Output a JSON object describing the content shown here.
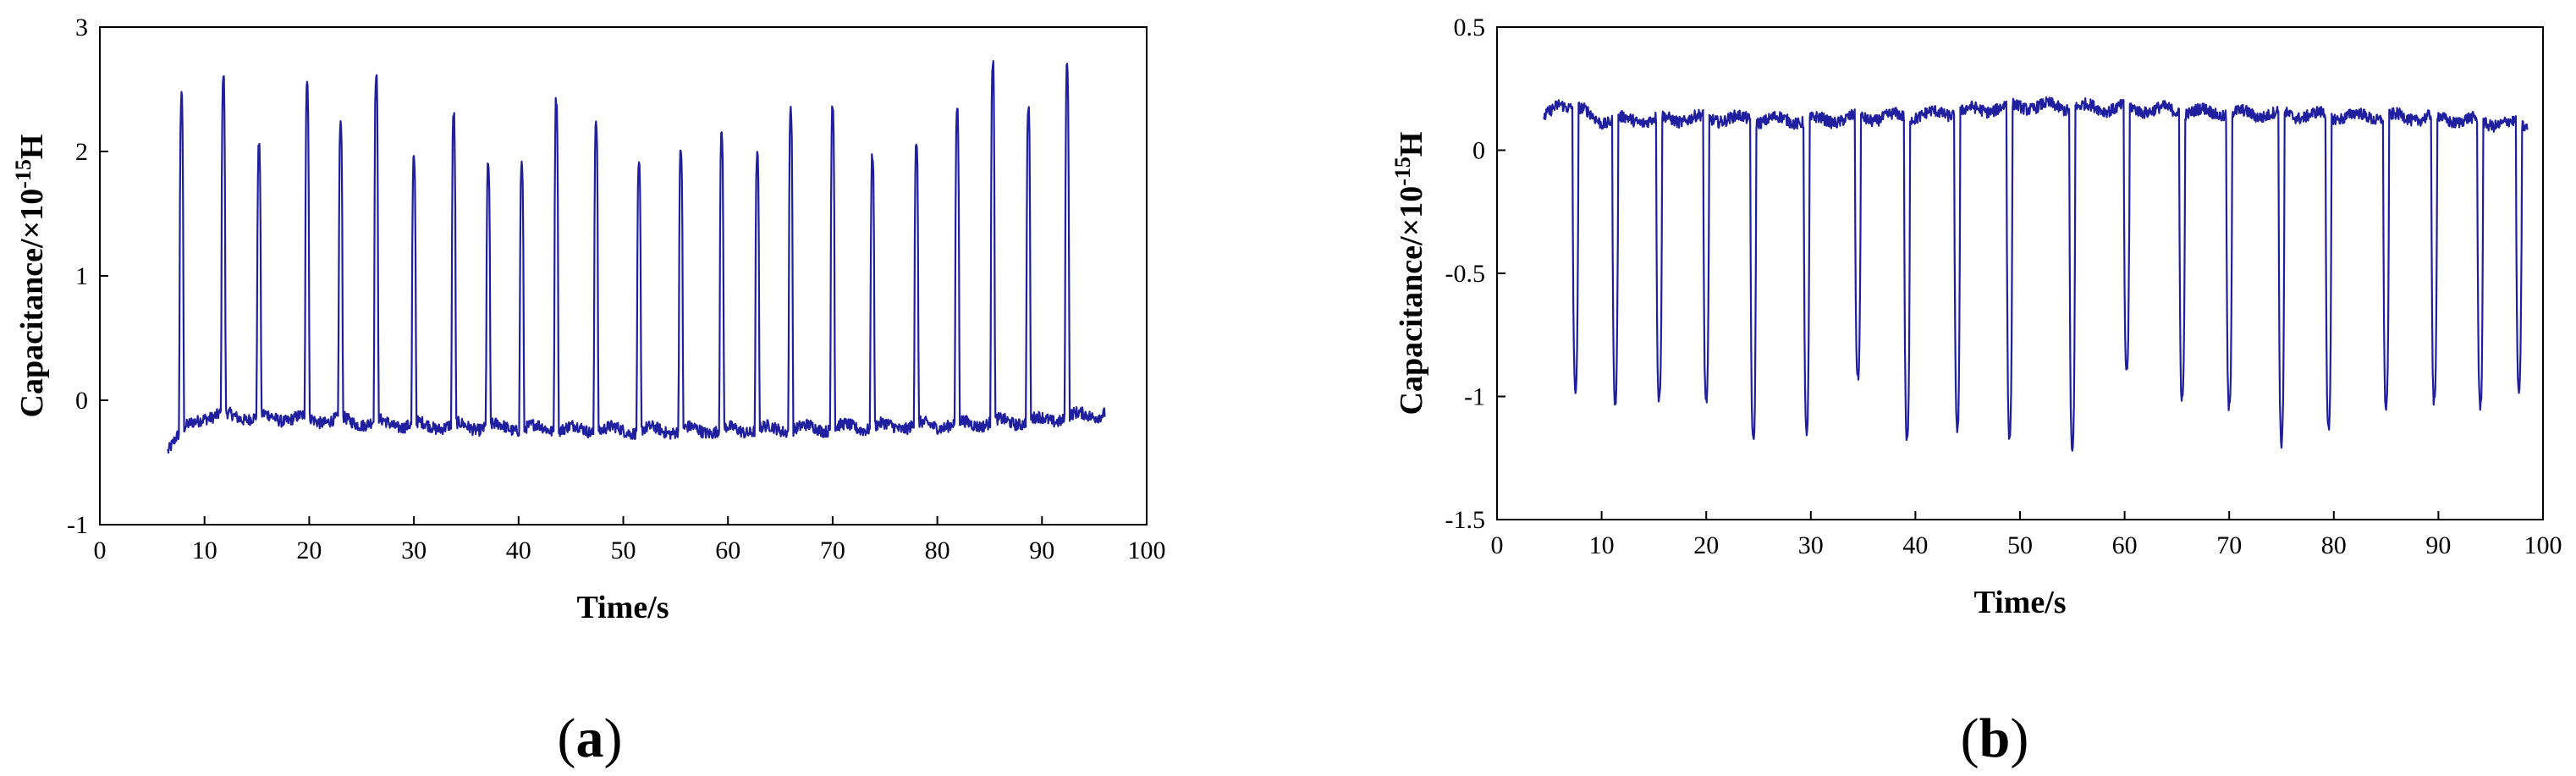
{
  "chart_data": [
    {
      "type": "line",
      "panel_label": "a",
      "xlabel": "Time/s",
      "ylabel_main": "Capacitance/×10",
      "ylabel_exp": "-15",
      "ylabel_unit": "H",
      "xlim": [
        0,
        100
      ],
      "ylim": [
        -1,
        3
      ],
      "xticks": [
        0,
        10,
        20,
        30,
        40,
        50,
        60,
        70,
        80,
        90,
        100
      ],
      "yticks": [
        -1,
        0,
        1,
        2,
        3
      ],
      "grid": false,
      "line_color": "#1f1fa0",
      "baseline": [
        [
          6.5,
          -0.38
        ],
        [
          7.2,
          -0.3
        ],
        [
          10,
          -0.12
        ],
        [
          20,
          -0.15
        ],
        [
          30,
          -0.2
        ],
        [
          40,
          -0.22
        ],
        [
          50,
          -0.24
        ],
        [
          60,
          -0.24
        ],
        [
          70,
          -0.22
        ],
        [
          80,
          -0.2
        ],
        [
          90,
          -0.16
        ],
        [
          96,
          -0.1
        ]
      ],
      "peaks": [
        [
          7.8,
          2.42
        ],
        [
          11.8,
          2.58
        ],
        [
          15.2,
          2.02
        ],
        [
          19.8,
          2.54
        ],
        [
          23.0,
          2.2
        ],
        [
          26.4,
          2.58
        ],
        [
          30.0,
          1.92
        ],
        [
          33.8,
          2.28
        ],
        [
          37.1,
          1.88
        ],
        [
          40.3,
          1.92
        ],
        [
          43.6,
          2.45
        ],
        [
          47.4,
          2.27
        ],
        [
          51.5,
          1.88
        ],
        [
          55.5,
          2.0
        ],
        [
          59.4,
          2.12
        ],
        [
          62.8,
          1.96
        ],
        [
          66.0,
          2.37
        ],
        [
          70.0,
          2.4
        ],
        [
          73.8,
          1.98
        ],
        [
          78.0,
          2.06
        ],
        [
          81.9,
          2.33
        ],
        [
          85.3,
          2.7
        ],
        [
          88.7,
          2.34
        ],
        [
          92.4,
          2.7
        ]
      ]
    },
    {
      "type": "line",
      "panel_label": "b",
      "xlabel": "Time/s",
      "ylabel_main": "Capacitance/×10",
      "ylabel_exp": "-15",
      "ylabel_unit": "H",
      "xlim": [
        0,
        100
      ],
      "ylim": [
        -1.5,
        0.5
      ],
      "xticks": [
        0,
        10,
        20,
        30,
        40,
        50,
        60,
        70,
        80,
        90,
        100
      ],
      "yticks": [
        -1.5,
        -1,
        -0.5,
        0,
        0.5
      ],
      "grid": false,
      "line_color": "#1f1fa0",
      "baseline": [
        [
          4.5,
          0.12
        ],
        [
          6,
          0.2
        ],
        [
          10,
          0.12
        ],
        [
          20,
          0.13
        ],
        [
          30,
          0.12
        ],
        [
          40,
          0.14
        ],
        [
          50,
          0.18
        ],
        [
          60,
          0.17
        ],
        [
          70,
          0.15
        ],
        [
          80,
          0.14
        ],
        [
          90,
          0.13
        ],
        [
          98.5,
          0.1
        ]
      ],
      "dips": [
        [
          7.5,
          -0.97
        ],
        [
          11.3,
          -1.02
        ],
        [
          15.5,
          -1.02
        ],
        [
          20.0,
          -1.02
        ],
        [
          24.5,
          -1.17
        ],
        [
          29.6,
          -1.14
        ],
        [
          34.5,
          -0.93
        ],
        [
          39.2,
          -1.17
        ],
        [
          44.0,
          -1.12
        ],
        [
          49.0,
          -1.17
        ],
        [
          55.0,
          -1.21
        ],
        [
          60.2,
          -0.9
        ],
        [
          65.5,
          -0.99
        ],
        [
          70.0,
          -1.04
        ],
        [
          75.0,
          -1.2
        ],
        [
          79.5,
          -1.14
        ],
        [
          85.0,
          -1.04
        ],
        [
          89.6,
          -1.04
        ],
        [
          94.0,
          -1.04
        ],
        [
          97.7,
          -0.98
        ]
      ]
    }
  ]
}
